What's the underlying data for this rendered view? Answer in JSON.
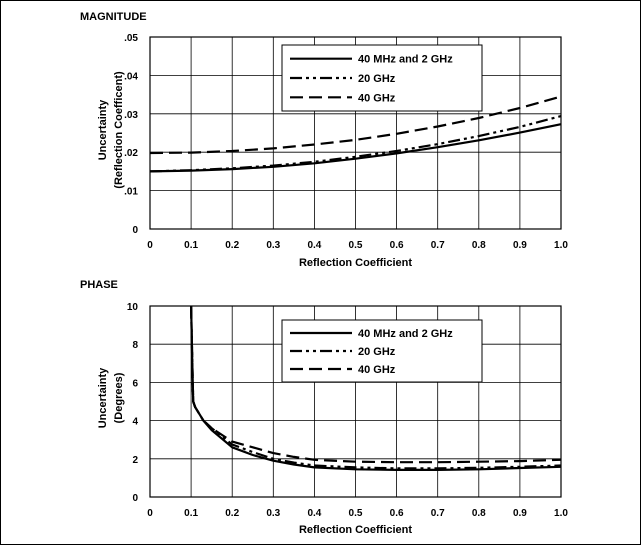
{
  "chart_data": [
    {
      "type": "line",
      "title": "MAGNITUDE",
      "xlabel": "Reflection Coefficient",
      "ylabel": [
        "Uncertainty",
        "(Reflection Coefficent)"
      ],
      "xlim": [
        0,
        1.0
      ],
      "ylim": [
        0,
        0.05
      ],
      "x_ticks": [
        "0",
        "0.1",
        "0.2",
        "0.3",
        "0.4",
        "0.5",
        "0.6",
        "0.7",
        "0.8",
        "0.9",
        "1.0"
      ],
      "y_ticks": [
        "0",
        ".01",
        ".02",
        ".03",
        ".04",
        ".05"
      ],
      "grid": true,
      "legend_position": "top-right",
      "series": [
        {
          "name": "40 MHz and 2 GHz",
          "style": "solid",
          "x": [
            0,
            0.1,
            0.2,
            0.3,
            0.4,
            0.5,
            0.6,
            0.7,
            0.8,
            0.9,
            1.0
          ],
          "y": [
            0.015,
            0.0152,
            0.0156,
            0.0162,
            0.0171,
            0.0183,
            0.0197,
            0.0213,
            0.0231,
            0.0251,
            0.0273
          ]
        },
        {
          "name": "20 GHz",
          "style": "dashdot",
          "x": [
            0,
            0.1,
            0.2,
            0.3,
            0.4,
            0.5,
            0.6,
            0.7,
            0.8,
            0.9,
            1.0
          ],
          "y": [
            0.015,
            0.0153,
            0.0158,
            0.0165,
            0.0175,
            0.0188,
            0.0203,
            0.0221,
            0.0242,
            0.0266,
            0.0294
          ]
        },
        {
          "name": "40 GHz",
          "style": "dashed",
          "x": [
            0,
            0.1,
            0.2,
            0.3,
            0.4,
            0.5,
            0.6,
            0.7,
            0.8,
            0.9,
            1.0
          ],
          "y": [
            0.0198,
            0.0199,
            0.0203,
            0.021,
            0.022,
            0.0232,
            0.0248,
            0.0267,
            0.0289,
            0.0315,
            0.0345
          ]
        }
      ]
    },
    {
      "type": "line",
      "title": "PHASE",
      "xlabel": "Reflection Coefficient",
      "ylabel": [
        "Uncertainty",
        "(Degrees)"
      ],
      "xlim": [
        0,
        1.0
      ],
      "ylim": [
        0,
        10
      ],
      "x_ticks": [
        "0",
        "0.1",
        "0.2",
        "0.3",
        "0.4",
        "0.5",
        "0.6",
        "0.7",
        "0.8",
        "0.9",
        "1.0"
      ],
      "y_ticks": [
        "0",
        "2",
        "4",
        "6",
        "8",
        "10"
      ],
      "grid": true,
      "legend_position": "top-right",
      "series": [
        {
          "name": "40 MHz and 2 GHz",
          "style": "solid",
          "x": [
            0.1,
            0.103,
            0.105,
            0.11,
            0.13,
            0.15,
            0.2,
            0.25,
            0.3,
            0.35,
            0.4,
            0.5,
            0.6,
            0.7,
            0.8,
            0.9,
            1.0
          ],
          "y": [
            10.0,
            7.0,
            5.0,
            4.7,
            4.0,
            3.5,
            2.6,
            2.2,
            1.9,
            1.7,
            1.55,
            1.45,
            1.42,
            1.42,
            1.45,
            1.52,
            1.58
          ]
        },
        {
          "name": "20 GHz",
          "style": "dashdot",
          "x": [
            0.1,
            0.103,
            0.105,
            0.11,
            0.13,
            0.15,
            0.2,
            0.25,
            0.3,
            0.35,
            0.4,
            0.5,
            0.6,
            0.7,
            0.8,
            0.9,
            1.0
          ],
          "y": [
            10.0,
            7.0,
            5.0,
            4.7,
            4.0,
            3.6,
            2.75,
            2.35,
            2.0,
            1.8,
            1.65,
            1.55,
            1.5,
            1.5,
            1.53,
            1.58,
            1.65
          ]
        },
        {
          "name": "40 GHz",
          "style": "dashed",
          "x": [
            0.1,
            0.103,
            0.105,
            0.11,
            0.13,
            0.15,
            0.2,
            0.25,
            0.3,
            0.35,
            0.4,
            0.5,
            0.6,
            0.7,
            0.8,
            0.9,
            1.0
          ],
          "y": [
            10.0,
            7.0,
            5.0,
            4.7,
            4.0,
            3.6,
            2.9,
            2.6,
            2.3,
            2.1,
            1.95,
            1.85,
            1.82,
            1.82,
            1.85,
            1.88,
            1.95
          ]
        }
      ]
    }
  ]
}
